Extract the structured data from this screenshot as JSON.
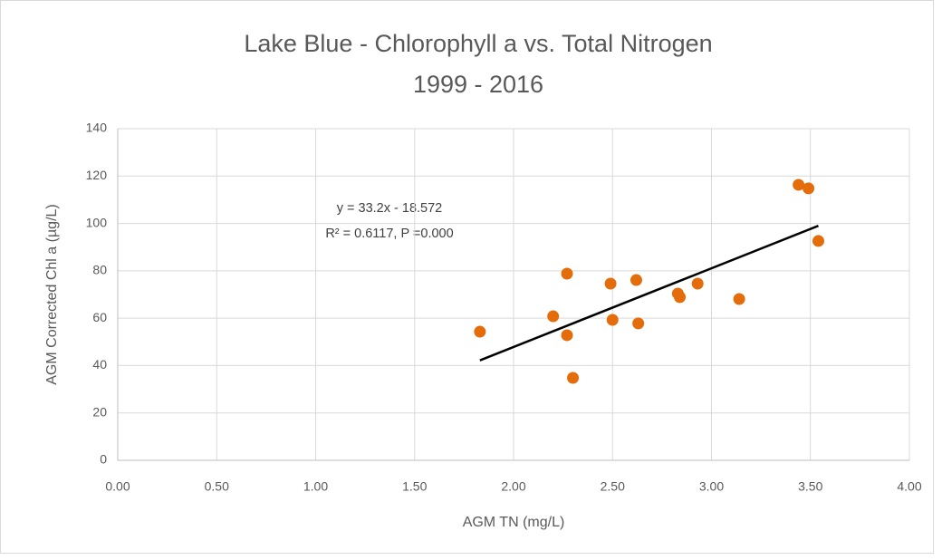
{
  "chart_data": {
    "type": "scatter",
    "title": "Lake Blue - Chlorophyll a vs. Total Nitrogen",
    "subtitle": "1999 - 2016",
    "x_label": "AGM TN (mg/L)",
    "y_label": "AGM Corrected Chl a (µg/L)",
    "annotations": [
      "y = 33.2x - 18.572",
      "R² = 0.6117, P =0.000"
    ],
    "series": [
      {
        "color": "#e46c0a",
        "x": [
          1.83,
          2.2,
          2.27,
          2.27,
          2.3,
          2.49,
          2.5,
          2.62,
          2.63,
          2.83,
          2.84,
          2.93,
          3.14,
          3.44,
          3.49,
          3.54
        ],
        "values": [
          54.3,
          60.8,
          78.8,
          52.8,
          34.8,
          74.6,
          59.3,
          76.1,
          57.8,
          70.4,
          68.9,
          74.6,
          68.1,
          116.3,
          114.8,
          92.6
        ]
      }
    ],
    "trendline": {
      "color": "#000000",
      "x": [
        1.83,
        3.54
      ],
      "y": [
        42.2,
        99.0
      ]
    },
    "xlim": [
      0,
      4
    ],
    "ylim": [
      0,
      140
    ],
    "xticks": [
      {
        "value": 0,
        "label": "0.00"
      },
      {
        "value": 0.5,
        "label": "0.50"
      },
      {
        "value": 1,
        "label": "1.00"
      },
      {
        "value": 1.5,
        "label": "1.50"
      },
      {
        "value": 2,
        "label": "2.00"
      },
      {
        "value": 2.5,
        "label": "2.50"
      },
      {
        "value": 3,
        "label": "3.00"
      },
      {
        "value": 3.5,
        "label": "3.50"
      },
      {
        "value": 4,
        "label": "4.00"
      }
    ],
    "yticks": [
      0,
      20,
      40,
      60,
      80,
      100,
      120,
      140
    ],
    "grid": true
  }
}
